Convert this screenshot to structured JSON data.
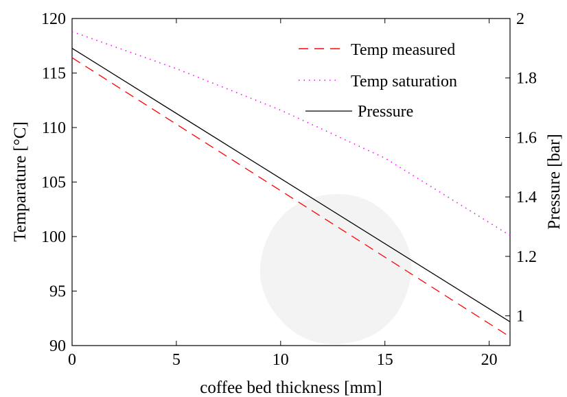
{
  "chart_data": {
    "type": "line",
    "xlabel": "coffee bed thickness [mm]",
    "ylabel_left": "Temparature [°C]",
    "ylabel_right": "Pressure [bar]",
    "xlim": [
      0,
      21
    ],
    "ylim_left": [
      90,
      120
    ],
    "ylim_right": [
      0.9,
      2.0
    ],
    "x_ticks": [
      0,
      5,
      10,
      15,
      20
    ],
    "y_ticks_left": [
      90,
      95,
      100,
      105,
      110,
      115,
      120
    ],
    "y_ticks_right": [
      1,
      1.2,
      1.4,
      1.6,
      1.8,
      2
    ],
    "grid": false,
    "legend_position": "top-right",
    "series": [
      {
        "name": "Temp measured",
        "axis": "left",
        "color": "#ff0000",
        "style": "dashed",
        "x": [
          0,
          21
        ],
        "y": [
          116.4,
          90.8
        ]
      },
      {
        "name": "Temp saturation",
        "axis": "left",
        "color": "#ff00ff",
        "style": "dotted",
        "x": [
          0,
          5,
          10,
          15,
          21
        ],
        "y": [
          118.8,
          115.4,
          111.6,
          107.2,
          100.1
        ]
      },
      {
        "name": "Pressure",
        "axis": "right",
        "color": "#000000",
        "style": "solid",
        "x": [
          0,
          21
        ],
        "y": [
          1.9,
          0.98
        ]
      }
    ]
  }
}
